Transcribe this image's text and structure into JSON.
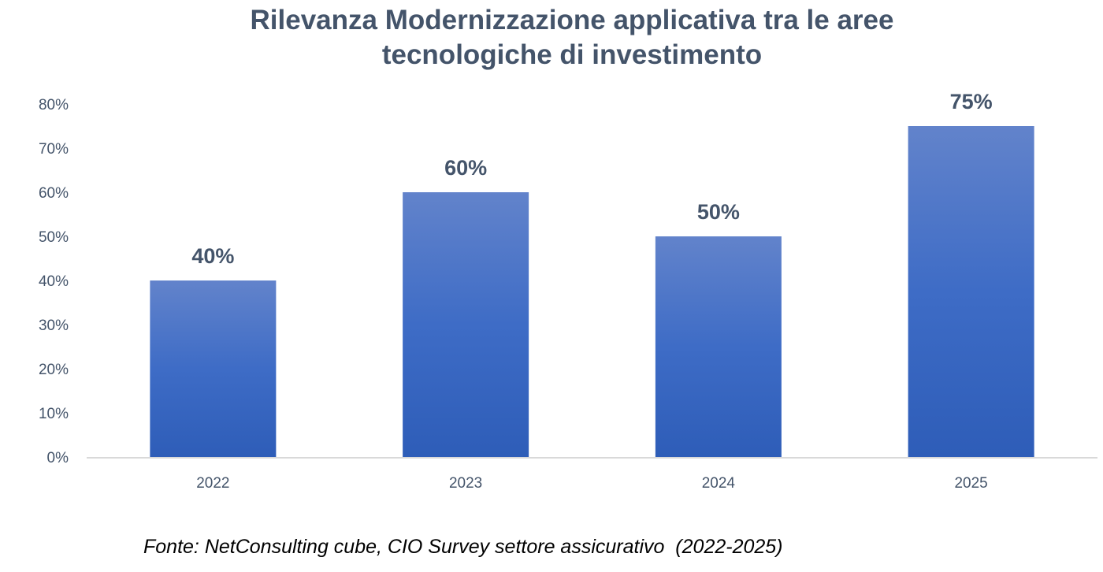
{
  "chart_data": {
    "type": "bar",
    "title": "Rilevanza Modernizzazione applicativa tra le aree tecnologiche di investimento",
    "title_lines": [
      "Rilevanza Modernizzazione applicativa tra le aree",
      "tecnologiche di investimento"
    ],
    "categories": [
      "2022",
      "2023",
      "2024",
      "2025"
    ],
    "values": [
      40,
      60,
      50,
      75
    ],
    "data_labels": [
      "40%",
      "60%",
      "50%",
      "75%"
    ],
    "xlabel": "",
    "ylabel": "",
    "ylim": [
      0,
      80
    ],
    "yticks": [
      "0%",
      "10%",
      "20%",
      "30%",
      "40%",
      "50%",
      "60%",
      "70%",
      "80%"
    ],
    "grid": false,
    "legend": "none",
    "colors": {
      "bar_top": "#6283CB",
      "bar_bottom": "#2E5DB8",
      "text": "#44546A",
      "axis": "#D9D9D9"
    }
  },
  "source": "Fonte: NetConsulting cube, CIO Survey settore assicurativo  (2022-2025)"
}
